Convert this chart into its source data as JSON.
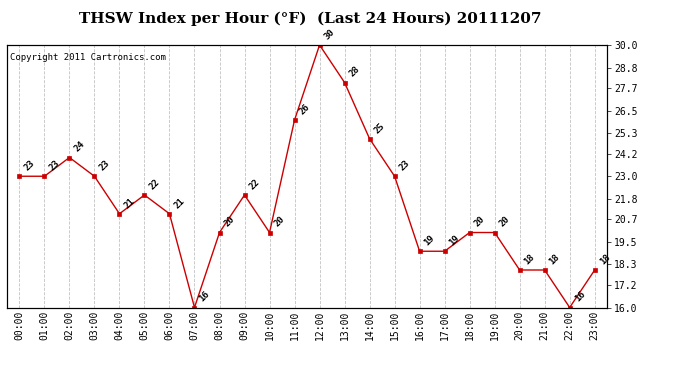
{
  "title": "THSW Index per Hour (°F)  (Last 24 Hours) 20111207",
  "copyright": "Copyright 2011 Cartronics.com",
  "x_labels": [
    "00:00",
    "01:00",
    "02:00",
    "03:00",
    "04:00",
    "05:00",
    "06:00",
    "07:00",
    "08:00",
    "09:00",
    "10:00",
    "11:00",
    "12:00",
    "13:00",
    "14:00",
    "15:00",
    "16:00",
    "17:00",
    "18:00",
    "19:00",
    "20:00",
    "21:00",
    "22:00",
    "23:00"
  ],
  "x_values": [
    0,
    1,
    2,
    3,
    4,
    5,
    6,
    7,
    8,
    9,
    10,
    11,
    12,
    13,
    14,
    15,
    16,
    17,
    18,
    19,
    20,
    21,
    22,
    23
  ],
  "y_values": [
    23,
    23,
    24,
    23,
    21,
    22,
    21,
    16,
    20,
    22,
    20,
    26,
    30,
    28,
    25,
    23,
    19,
    19,
    20,
    20,
    18,
    18,
    16,
    18
  ],
  "point_labels": [
    "23",
    "23",
    "24",
    "23",
    "21",
    "22",
    "21",
    "16",
    "20",
    "22",
    "20",
    "26",
    "30",
    "28",
    "25",
    "23",
    "19",
    "19",
    "20",
    "20",
    "18",
    "18",
    "16",
    "18"
  ],
  "line_color": "#cc0000",
  "marker_color": "#cc0000",
  "bg_color": "#ffffff",
  "grid_color": "#bbbbbb",
  "ylim": [
    16.0,
    30.0
  ],
  "yticks_right": [
    16.0,
    17.2,
    18.3,
    19.5,
    20.7,
    21.8,
    23.0,
    24.2,
    25.3,
    26.5,
    27.7,
    28.8,
    30.0
  ],
  "title_fontsize": 11,
  "label_fontsize": 6.5,
  "copyright_fontsize": 6.5,
  "tick_fontsize": 7
}
